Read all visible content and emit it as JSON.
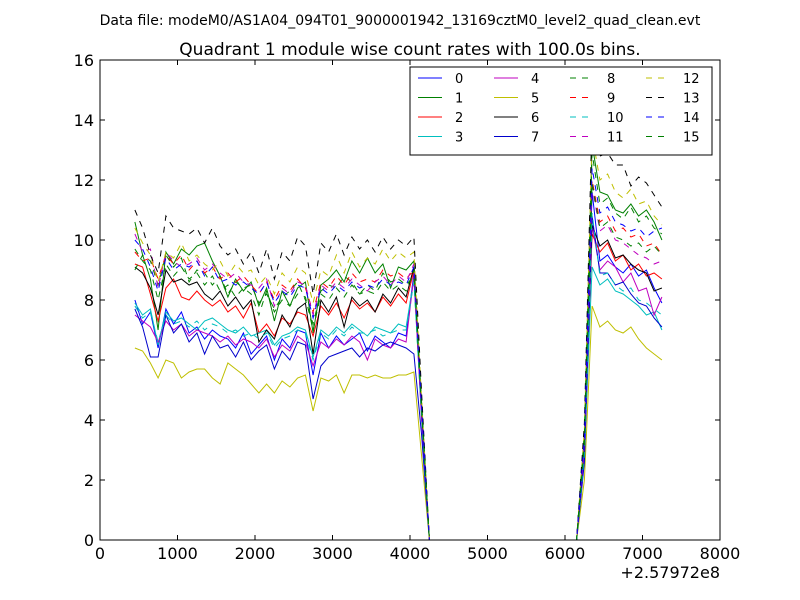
{
  "chart_data": {
    "type": "line",
    "suptitle": "Data file: modeM0/AS1A04_094T01_9000001942_13169cztM0_level2_quad_clean.evt",
    "title": "Quadrant 1 module wise count rates with 100.0s bins.",
    "xlabel": "",
    "ylabel": "",
    "x_offset_label": "+2.57972e8",
    "xlim": [
      0,
      8000
    ],
    "ylim": [
      0,
      16
    ],
    "xticks": [
      0,
      1000,
      2000,
      3000,
      4000,
      5000,
      6000,
      7000,
      8000
    ],
    "yticks": [
      0,
      2,
      4,
      6,
      8,
      10,
      12,
      14,
      16
    ],
    "legend_position": "upper-right",
    "legend_columns": 4,
    "x": [
      450,
      550,
      650,
      750,
      850,
      950,
      1050,
      1150,
      1250,
      1350,
      1450,
      1550,
      1650,
      1750,
      1850,
      1950,
      2050,
      2150,
      2250,
      2350,
      2450,
      2550,
      2650,
      2750,
      2850,
      2950,
      3050,
      3150,
      3250,
      3350,
      3450,
      3550,
      3650,
      3750,
      3850,
      3950,
      4050,
      4150,
      4250,
      4350,
      4450,
      4550,
      4650,
      4750,
      4850,
      4950,
      5050,
      5150,
      5250,
      5350,
      5450,
      5550,
      5650,
      5750,
      5850,
      5950,
      6050,
      6150,
      6250,
      6350,
      6450,
      6550,
      6650,
      6750,
      6850,
      6950,
      7050,
      7150,
      7250
    ],
    "series": [
      {
        "name": "0",
        "color": "#0000ff",
        "dash": "solid",
        "values": [
          8.0,
          7.2,
          7.6,
          6.4,
          7.7,
          7.2,
          7.6,
          6.9,
          7.1,
          6.7,
          7.0,
          6.8,
          6.7,
          6.4,
          6.9,
          6.2,
          6.5,
          6.8,
          6.0,
          6.7,
          6.4,
          7.0,
          6.9,
          5.5,
          6.9,
          6.4,
          6.8,
          6.5,
          6.7,
          6.9,
          6.3,
          6.8,
          6.6,
          6.4,
          6.9,
          6.8,
          8.9,
          4.2,
          0,
          0,
          0,
          0,
          0,
          0,
          0,
          0,
          0,
          0,
          0,
          0,
          0,
          0,
          0,
          0,
          0,
          0,
          0,
          0,
          3.0,
          11.6,
          9.3,
          9.5,
          9.1,
          8.9,
          9.2,
          8.8,
          9.0,
          8.4,
          7.9
        ]
      },
      {
        "name": "1",
        "color": "#008000",
        "dash": "solid",
        "values": [
          10.6,
          9.5,
          8.7,
          7.0,
          9.6,
          9.2,
          9.7,
          9.5,
          9.8,
          9.9,
          9.3,
          8.8,
          8.1,
          8.7,
          8.3,
          8.6,
          7.8,
          8.4,
          7.3,
          8.3,
          7.8,
          8.4,
          8.6,
          6.9,
          8.5,
          8.7,
          9.0,
          8.6,
          9.3,
          8.9,
          9.4,
          8.9,
          9.2,
          8.4,
          9.1,
          9.0,
          9.3,
          4.5,
          0,
          0,
          0,
          0,
          0,
          0,
          0,
          0,
          0,
          0,
          0,
          0,
          0,
          0,
          0,
          0,
          0,
          0,
          0,
          0,
          3.5,
          13.2,
          11.6,
          11.5,
          11.0,
          10.9,
          11.2,
          10.8,
          11.0,
          10.6,
          10.0
        ]
      },
      {
        "name": "2",
        "color": "#ff0000",
        "dash": "solid",
        "values": [
          9.2,
          9.1,
          8.2,
          7.3,
          8.4,
          8.7,
          8.1,
          8.0,
          8.3,
          8.0,
          7.8,
          8.0,
          7.6,
          7.8,
          7.4,
          7.9,
          6.9,
          7.2,
          6.8,
          7.4,
          7.2,
          7.6,
          7.5,
          6.8,
          7.8,
          7.5,
          7.9,
          7.4,
          8.0,
          7.7,
          7.9,
          7.6,
          8.1,
          7.8,
          8.2,
          7.9,
          9.0,
          4.3,
          0,
          0,
          0,
          0,
          0,
          0,
          0,
          0,
          0,
          0,
          0,
          0,
          0,
          0,
          0,
          0,
          0,
          0,
          0,
          0,
          3.2,
          10.2,
          9.6,
          9.9,
          9.3,
          9.5,
          9.0,
          9.2,
          8.8,
          8.9,
          8.7
        ]
      },
      {
        "name": "3",
        "color": "#00bfbf",
        "dash": "solid",
        "values": [
          7.9,
          7.5,
          7.7,
          6.5,
          7.6,
          7.3,
          7.4,
          7.2,
          7.0,
          7.3,
          7.4,
          7.2,
          7.0,
          6.9,
          7.1,
          6.8,
          6.9,
          7.0,
          6.5,
          6.8,
          6.9,
          7.1,
          7.0,
          6.1,
          7.0,
          6.8,
          7.1,
          6.9,
          7.2,
          7.0,
          6.8,
          7.1,
          7.0,
          6.9,
          7.2,
          7.1,
          8.7,
          4.1,
          0,
          0,
          0,
          0,
          0,
          0,
          0,
          0,
          0,
          0,
          0,
          0,
          0,
          0,
          0,
          0,
          0,
          0,
          0,
          0,
          2.9,
          9.1,
          8.5,
          8.7,
          8.3,
          8.2,
          8.0,
          7.8,
          7.5,
          7.6,
          7.0
        ]
      },
      {
        "name": "4",
        "color": "#bf00bf",
        "dash": "solid",
        "values": [
          7.5,
          7.3,
          7.1,
          6.6,
          7.3,
          7.0,
          7.2,
          6.8,
          7.0,
          6.9,
          6.8,
          6.6,
          6.8,
          6.5,
          6.7,
          6.6,
          6.4,
          6.7,
          6.1,
          6.5,
          6.3,
          6.8,
          6.6,
          5.8,
          6.6,
          6.4,
          6.7,
          6.5,
          6.8,
          6.6,
          6.0,
          6.7,
          6.5,
          6.4,
          6.7,
          6.6,
          8.8,
          4.0,
          0,
          0,
          0,
          0,
          0,
          0,
          0,
          0,
          0,
          0,
          0,
          0,
          0,
          0,
          0,
          0,
          0,
          0,
          0,
          0,
          2.8,
          10.5,
          9.0,
          9.3,
          9.1,
          8.6,
          8.9,
          8.3,
          8.4,
          7.5,
          8.1
        ]
      },
      {
        "name": "5",
        "color": "#bfbf00",
        "dash": "solid",
        "values": [
          6.4,
          6.3,
          5.9,
          5.4,
          6.0,
          5.9,
          5.4,
          5.6,
          5.7,
          5.7,
          5.4,
          5.2,
          5.9,
          5.7,
          5.5,
          5.2,
          4.9,
          5.2,
          4.9,
          5.3,
          5.1,
          5.4,
          5.5,
          4.3,
          5.4,
          5.3,
          5.5,
          4.9,
          5.5,
          5.5,
          5.4,
          5.5,
          5.4,
          5.4,
          5.5,
          5.5,
          5.6,
          2.8,
          0,
          0,
          0,
          0,
          0,
          0,
          0,
          0,
          0,
          0,
          0,
          0,
          0,
          0,
          0,
          0,
          0,
          0,
          0,
          0,
          2.0,
          7.8,
          7.1,
          7.3,
          7.0,
          6.9,
          7.1,
          6.7,
          6.4,
          6.2,
          6.0
        ]
      },
      {
        "name": "6",
        "color": "#000000",
        "dash": "solid",
        "values": [
          9.1,
          8.9,
          8.4,
          7.5,
          9.0,
          8.6,
          8.7,
          8.5,
          8.6,
          8.2,
          8.0,
          8.3,
          7.8,
          8.1,
          7.7,
          8.0,
          6.6,
          7.0,
          6.7,
          7.5,
          7.1,
          7.7,
          7.9,
          6.2,
          8.0,
          7.6,
          8.1,
          7.1,
          8.1,
          7.8,
          8.0,
          7.6,
          8.2,
          7.9,
          8.4,
          8.1,
          9.1,
          4.4,
          0,
          0,
          0,
          0,
          0,
          0,
          0,
          0,
          0,
          0,
          0,
          0,
          0,
          0,
          0,
          0,
          0,
          0,
          0,
          0,
          3.3,
          10.5,
          9.8,
          10.0,
          9.4,
          9.5,
          9.2,
          9.0,
          8.9,
          8.3,
          8.4
        ]
      },
      {
        "name": "7",
        "color": "#0000cc",
        "dash": "solid",
        "values": [
          7.7,
          7.1,
          6.1,
          6.1,
          7.5,
          6.9,
          7.2,
          6.6,
          6.9,
          6.2,
          6.8,
          6.4,
          6.5,
          6.1,
          6.6,
          6.0,
          6.3,
          6.5,
          5.7,
          6.3,
          6.0,
          6.6,
          6.5,
          4.7,
          5.8,
          6.1,
          6.2,
          6.3,
          6.4,
          6.1,
          6.4,
          6.3,
          6.5,
          6.6,
          6.5,
          6.4,
          6.2,
          3.5,
          0,
          0,
          0,
          0,
          0,
          0,
          0,
          0,
          0,
          0,
          0,
          0,
          0,
          0,
          0,
          0,
          0,
          0,
          0,
          0,
          2.6,
          10.8,
          8.9,
          8.9,
          8.5,
          8.6,
          8.2,
          7.9,
          7.8,
          7.4,
          7.1
        ]
      },
      {
        "name": "8",
        "color": "#008000",
        "dash": "dashed",
        "values": [
          9.0,
          9.5,
          9.3,
          8.5,
          9.5,
          9.1,
          9.4,
          8.6,
          9.0,
          8.9,
          8.5,
          8.8,
          8.2,
          8.6,
          8.4,
          8.5,
          7.9,
          8.2,
          7.7,
          8.1,
          8.3,
          8.6,
          8.0,
          7.2,
          8.3,
          8.5,
          8.4,
          8.8,
          8.6,
          8.2,
          8.5,
          8.3,
          8.9,
          8.6,
          8.7,
          8.5,
          8.8,
          4.6,
          0,
          0,
          0,
          0,
          0,
          0,
          0,
          0,
          0,
          0,
          0,
          0,
          0,
          0,
          0,
          0,
          0,
          0,
          0,
          0,
          3.6,
          12.9,
          11.2,
          11.4,
          10.9,
          10.7,
          11.1,
          10.6,
          10.8,
          10.4,
          10.2
        ]
      },
      {
        "name": "9",
        "color": "#ff0000",
        "dash": "dashed",
        "values": [
          9.6,
          9.3,
          9.4,
          8.7,
          9.5,
          9.2,
          9.5,
          9.0,
          9.3,
          8.9,
          9.1,
          8.7,
          8.9,
          8.6,
          8.8,
          8.5,
          8.2,
          8.6,
          8.0,
          8.5,
          8.3,
          8.7,
          8.4,
          7.6,
          8.6,
          8.4,
          8.8,
          8.5,
          8.9,
          8.6,
          8.7,
          8.6,
          9.0,
          8.8,
          8.9,
          8.7,
          9.0,
          4.5,
          0,
          0,
          0,
          0,
          0,
          0,
          0,
          0,
          0,
          0,
          0,
          0,
          0,
          0,
          0,
          0,
          0,
          0,
          0,
          0,
          3.4,
          12.0,
          10.6,
          10.8,
          10.3,
          10.4,
          10.1,
          10.2,
          9.8,
          9.9,
          9.5
        ]
      },
      {
        "name": "10",
        "color": "#00bfbf",
        "dash": "dashed",
        "values": [
          7.8,
          7.4,
          7.6,
          6.6,
          7.5,
          7.2,
          7.3,
          7.1,
          7.3,
          7.0,
          7.2,
          7.1,
          6.9,
          7.0,
          6.8,
          6.9,
          6.7,
          6.9,
          6.4,
          6.7,
          6.8,
          7.0,
          6.9,
          6.0,
          6.9,
          6.7,
          7.0,
          6.8,
          7.1,
          6.9,
          6.9,
          7.0,
          6.8,
          6.9,
          7.0,
          7.0,
          8.6,
          4.1,
          0,
          0,
          0,
          0,
          0,
          0,
          0,
          0,
          0,
          0,
          0,
          0,
          0,
          0,
          0,
          0,
          0,
          0,
          0,
          0,
          2.9,
          10.9,
          8.8,
          8.9,
          8.5,
          8.3,
          8.4,
          8.0,
          7.9,
          7.7,
          7.5
        ]
      },
      {
        "name": "11",
        "color": "#bf00bf",
        "dash": "dashed",
        "values": [
          10.2,
          9.6,
          9.7,
          8.4,
          9.6,
          9.3,
          9.1,
          9.2,
          9.4,
          9.0,
          9.2,
          8.9,
          8.7,
          8.9,
          8.6,
          8.5,
          8.4,
          8.7,
          7.8,
          8.4,
          8.2,
          8.6,
          8.5,
          7.5,
          8.5,
          8.3,
          8.6,
          8.4,
          8.7,
          8.5,
          8.3,
          8.6,
          8.8,
          8.5,
          8.8,
          8.6,
          9.2,
          4.5,
          0,
          0,
          0,
          0,
          0,
          0,
          0,
          0,
          0,
          0,
          0,
          0,
          0,
          0,
          0,
          0,
          0,
          0,
          0,
          0,
          3.3,
          11.8,
          10.3,
          10.5,
          10.0,
          9.9,
          9.7,
          9.5,
          9.4,
          9.2,
          9.3
        ]
      },
      {
        "name": "12",
        "color": "#bfbf00",
        "dash": "dashed",
        "values": [
          10.4,
          9.9,
          9.5,
          8.6,
          9.6,
          9.4,
          9.9,
          9.3,
          9.5,
          9.2,
          9.0,
          9.3,
          8.8,
          9.2,
          8.9,
          9.0,
          8.5,
          8.8,
          8.2,
          8.9,
          8.6,
          9.1,
          8.9,
          7.9,
          9.0,
          8.8,
          9.5,
          8.9,
          9.6,
          9.1,
          9.4,
          9.2,
          9.7,
          9.3,
          9.6,
          9.4,
          9.6,
          4.7,
          0,
          0,
          0,
          0,
          0,
          0,
          0,
          0,
          0,
          0,
          0,
          0,
          0,
          0,
          0,
          0,
          0,
          0,
          0,
          0,
          3.7,
          13.5,
          12.0,
          12.2,
          11.6,
          11.4,
          11.7,
          11.2,
          11.3,
          10.8,
          10.5
        ]
      },
      {
        "name": "13",
        "color": "#000000",
        "dash": "dashed",
        "values": [
          11.0,
          10.4,
          9.5,
          8.9,
          10.8,
          10.4,
          10.3,
          10.2,
          10.4,
          9.9,
          10.4,
          9.8,
          9.5,
          9.7,
          9.2,
          9.6,
          8.9,
          9.7,
          8.7,
          9.6,
          9.3,
          10.1,
          9.8,
          8.2,
          9.9,
          9.6,
          10.2,
          9.5,
          10.1,
          9.7,
          10.0,
          9.6,
          10.1,
          9.7,
          10.0,
          9.8,
          10.1,
          4.9,
          0,
          0,
          0,
          0,
          0,
          0,
          0,
          0,
          0,
          0,
          0,
          0,
          0,
          0,
          0,
          0,
          0,
          0,
          0,
          0,
          3.9,
          14.1,
          12.8,
          12.9,
          12.5,
          12.5,
          11.8,
          12.1,
          11.9,
          11.5,
          11.1
        ]
      },
      {
        "name": "14",
        "color": "#0000ff",
        "dash": "dashed",
        "values": [
          10.0,
          9.7,
          9.1,
          8.3,
          9.4,
          9.0,
          9.2,
          9.1,
          9.3,
          8.8,
          9.1,
          8.6,
          8.7,
          8.5,
          8.6,
          8.4,
          8.2,
          8.6,
          7.9,
          8.3,
          8.1,
          8.5,
          8.4,
          7.4,
          8.4,
          8.2,
          8.5,
          8.3,
          8.6,
          8.4,
          8.5,
          8.4,
          8.7,
          8.5,
          8.6,
          8.5,
          9.1,
          4.4,
          0,
          0,
          0,
          0,
          0,
          0,
          0,
          0,
          0,
          0,
          0,
          0,
          0,
          0,
          0,
          0,
          0,
          0,
          0,
          0,
          3.4,
          12.4,
          10.9,
          11.1,
          10.6,
          10.5,
          10.3,
          10.4,
          10.1,
          10.3,
          10.4
        ]
      },
      {
        "name": "15",
        "color": "#008000",
        "dash": "dashed",
        "values": [
          9.7,
          9.3,
          9.0,
          8.0,
          9.2,
          8.8,
          9.1,
          8.7,
          8.9,
          8.5,
          8.8,
          8.3,
          8.5,
          8.1,
          8.4,
          8.2,
          7.5,
          8.3,
          7.6,
          8.0,
          7.8,
          8.2,
          8.1,
          7.0,
          8.2,
          8.0,
          8.4,
          8.1,
          8.5,
          8.2,
          8.3,
          8.2,
          8.6,
          8.3,
          8.5,
          8.3,
          9.0,
          4.3,
          0,
          0,
          0,
          0,
          0,
          0,
          0,
          0,
          0,
          0,
          0,
          0,
          0,
          0,
          0,
          0,
          0,
          0,
          0,
          0,
          3.2,
          11.9,
          10.4,
          10.6,
          10.1,
          10.0,
          9.8,
          9.9,
          9.6,
          9.8,
          9.5
        ]
      }
    ]
  }
}
